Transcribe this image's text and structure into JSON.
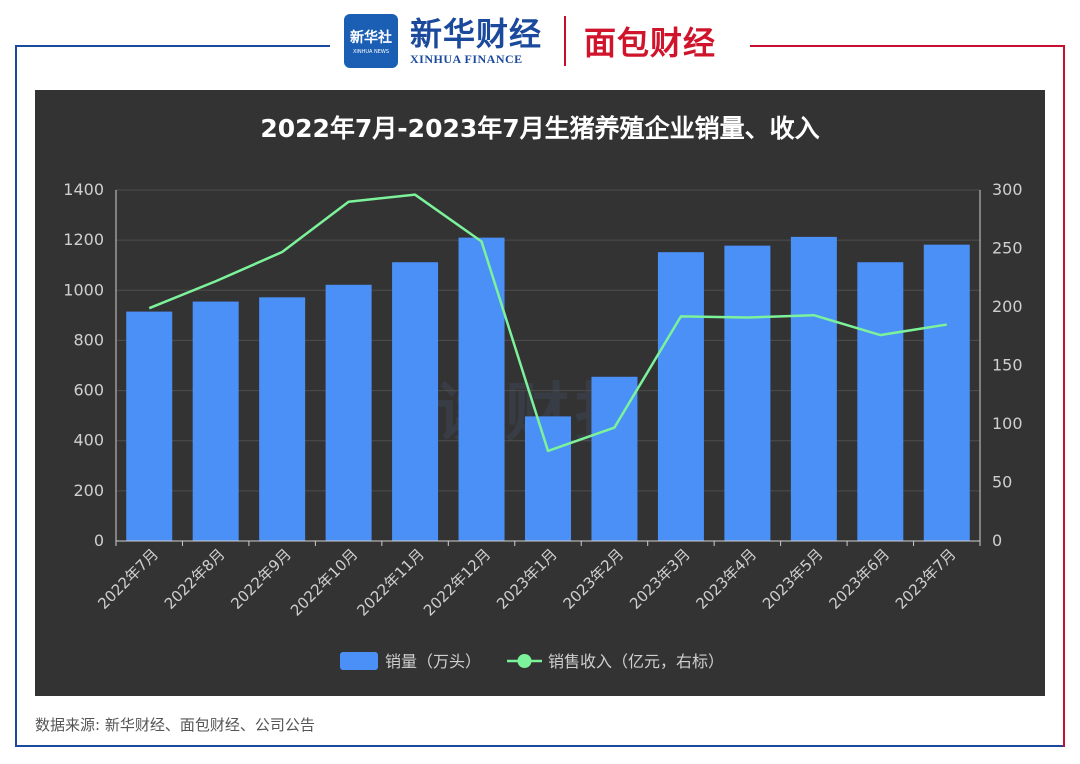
{
  "header": {
    "xinhua_badge_line1": "新华社",
    "xinhua_badge_line2": "XINHUA NEWS",
    "xinhua_cn": "新华财经",
    "xinhua_en": "XINHUA FINANCE",
    "mianbao": "面包财经"
  },
  "watermark": "读财报",
  "source_text": "数据来源: 新华财经、面包财经、公司公告",
  "colors": {
    "bar": "#4a90f7",
    "line": "#7cf29a",
    "panel": "#333333",
    "frame_blue": "#1b4a9c",
    "frame_red": "#c8102e"
  },
  "chart_data": {
    "type": "bar",
    "title": "2022年7月-2023年7月生猪养殖企业销量、收入",
    "categories": [
      "2022年7月",
      "2022年8月",
      "2022年9月",
      "2022年10月",
      "2022年11月",
      "2022年12月",
      "2023年1月",
      "2023年2月",
      "2023年3月",
      "2023年4月",
      "2023年5月",
      "2023年6月",
      "2023年7月"
    ],
    "series": [
      {
        "name": "销量（万头）",
        "type": "bar",
        "axis": "left",
        "values": [
          915,
          955,
          972,
          1022,
          1112,
          1210,
          497,
          655,
          1152,
          1178,
          1213,
          1112,
          1182
        ]
      },
      {
        "name": "销售收入（亿元，右标）",
        "type": "line",
        "axis": "right",
        "values": [
          199,
          222,
          247,
          290,
          296,
          256,
          77,
          97,
          192,
          191,
          193,
          176,
          185
        ]
      }
    ],
    "y_left": {
      "min": 0,
      "max": 1400,
      "ticks": [
        "0",
        "200",
        "400",
        "600",
        "800",
        "1000",
        "1200",
        "1400"
      ]
    },
    "y_right": {
      "min": 0,
      "max": 300,
      "ticks": [
        "0",
        "50",
        "100",
        "150",
        "200",
        "250",
        "300"
      ]
    },
    "grid": true,
    "legend_position": "bottom-center"
  }
}
